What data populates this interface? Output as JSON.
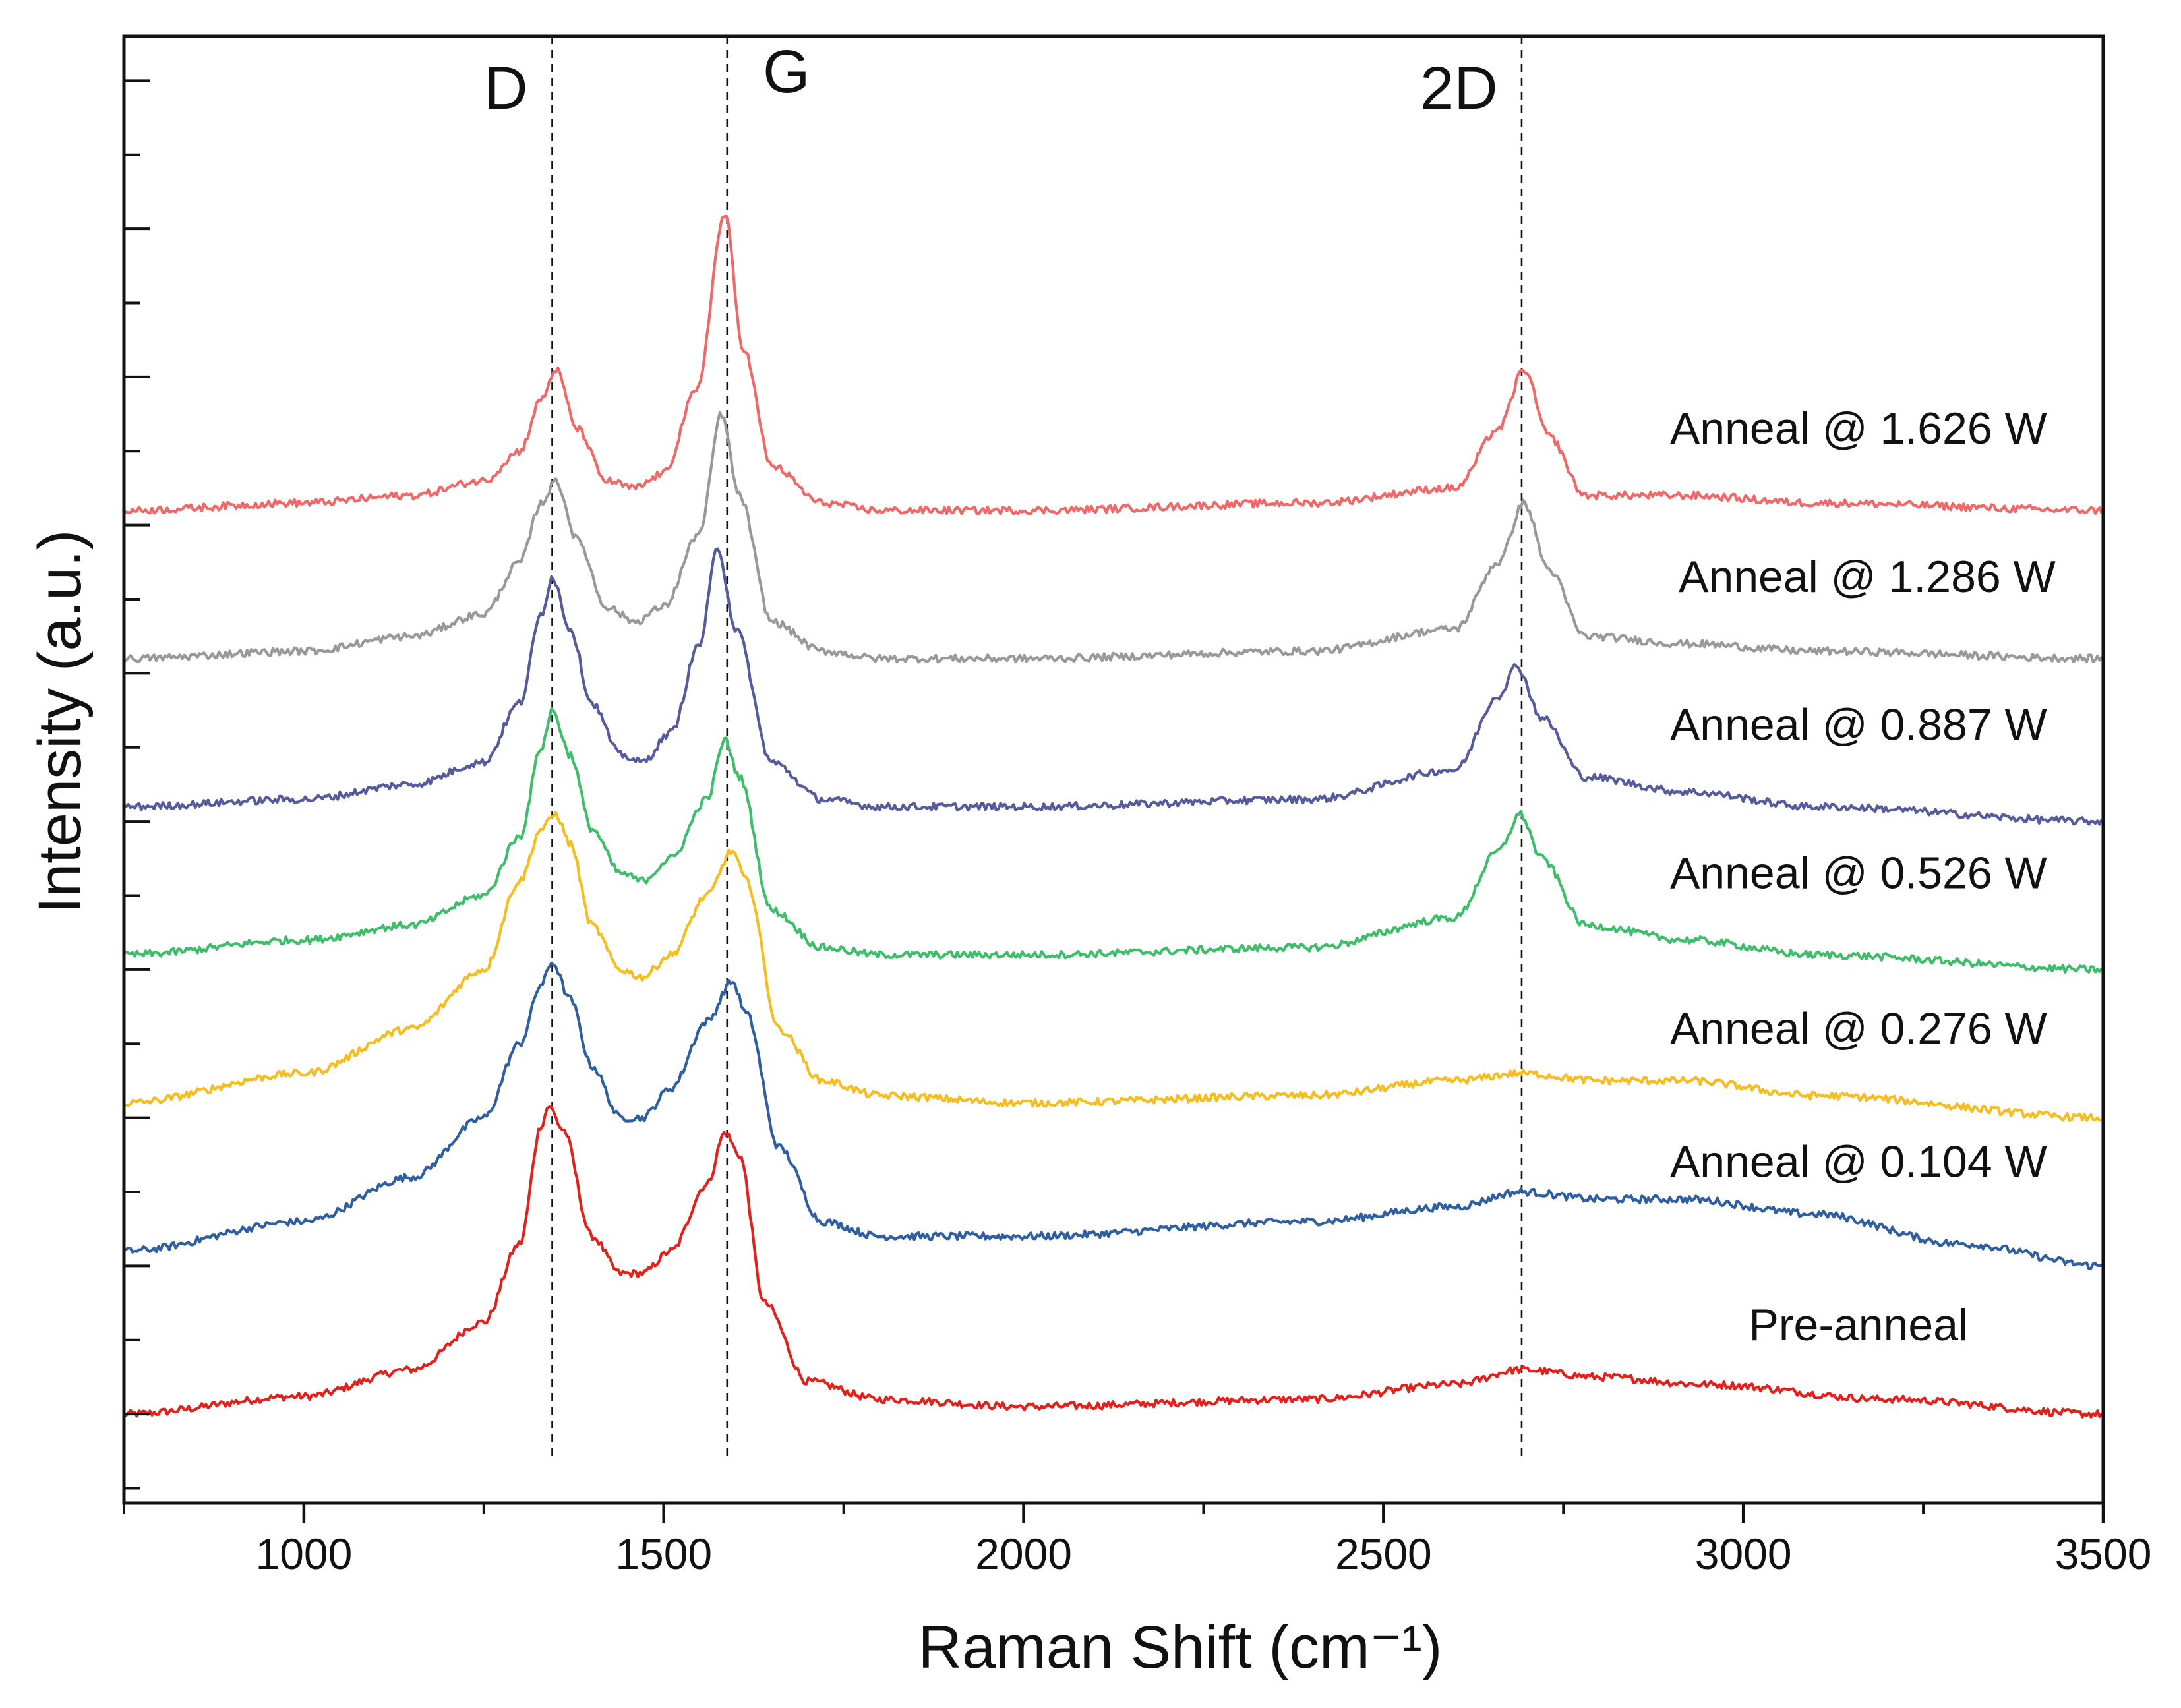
{
  "chart_data": {
    "type": "line",
    "title": "",
    "xlabel": "Raman Shift (cm⁻¹)",
    "ylabel": "Intensity (a.u.)",
    "xlim": [
      750,
      3500
    ],
    "ylim": [
      -0.6,
      9.3
    ],
    "x_ticks": [
      1000,
      1500,
      2000,
      2500,
      3000,
      3500
    ],
    "grid": false,
    "legend": "inline labels to the right of each curve",
    "peak_markers": [
      {
        "label": "D",
        "x": 1345
      },
      {
        "label": "G",
        "x": 1588
      },
      {
        "label": "2D",
        "x": 2692
      }
    ],
    "series": [
      {
        "name": "Pre-anneal",
        "color": "#e2211c",
        "baseline": 0.0,
        "points": [
          [
            750,
            0.0
          ],
          [
            1000,
            0.12
          ],
          [
            1150,
            0.3
          ],
          [
            1250,
            0.62
          ],
          [
            1300,
            1.15
          ],
          [
            1330,
            1.95
          ],
          [
            1340,
            2.08
          ],
          [
            1360,
            1.92
          ],
          [
            1400,
            1.2
          ],
          [
            1440,
            0.95
          ],
          [
            1470,
            0.95
          ],
          [
            1510,
            1.1
          ],
          [
            1560,
            1.55
          ],
          [
            1585,
            1.9
          ],
          [
            1605,
            1.75
          ],
          [
            1640,
            0.75
          ],
          [
            1700,
            0.22
          ],
          [
            1800,
            0.1
          ],
          [
            2000,
            0.05
          ],
          [
            2400,
            0.1
          ],
          [
            2600,
            0.2
          ],
          [
            2690,
            0.3
          ],
          [
            2800,
            0.25
          ],
          [
            2950,
            0.2
          ],
          [
            3200,
            0.1
          ],
          [
            3500,
            0.0
          ]
        ]
      },
      {
        "name": "Anneal @ 0.104 W",
        "color": "#2f5fa0",
        "baseline": 1.1,
        "points": [
          [
            750,
            1.1
          ],
          [
            1000,
            1.3
          ],
          [
            1150,
            1.6
          ],
          [
            1250,
            2.0
          ],
          [
            1300,
            2.5
          ],
          [
            1330,
            2.9
          ],
          [
            1345,
            3.05
          ],
          [
            1370,
            2.8
          ],
          [
            1400,
            2.35
          ],
          [
            1440,
            2.0
          ],
          [
            1470,
            2.0
          ],
          [
            1510,
            2.2
          ],
          [
            1560,
            2.65
          ],
          [
            1595,
            2.92
          ],
          [
            1615,
            2.7
          ],
          [
            1660,
            1.8
          ],
          [
            1720,
            1.3
          ],
          [
            1800,
            1.2
          ],
          [
            2000,
            1.2
          ],
          [
            2400,
            1.3
          ],
          [
            2600,
            1.4
          ],
          [
            2690,
            1.5
          ],
          [
            2800,
            1.45
          ],
          [
            2920,
            1.45
          ],
          [
            3100,
            1.35
          ],
          [
            3300,
            1.15
          ],
          [
            3500,
            1.0
          ]
        ]
      },
      {
        "name": "Anneal @ 0.276 W",
        "color": "#f5bd1f",
        "baseline": 2.1,
        "points": [
          [
            750,
            2.1
          ],
          [
            1000,
            2.3
          ],
          [
            1150,
            2.6
          ],
          [
            1250,
            3.0
          ],
          [
            1300,
            3.6
          ],
          [
            1330,
            3.95
          ],
          [
            1350,
            4.05
          ],
          [
            1370,
            3.85
          ],
          [
            1400,
            3.3
          ],
          [
            1440,
            3.0
          ],
          [
            1470,
            2.95
          ],
          [
            1510,
            3.1
          ],
          [
            1560,
            3.5
          ],
          [
            1595,
            3.8
          ],
          [
            1615,
            3.6
          ],
          [
            1660,
            2.6
          ],
          [
            1720,
            2.25
          ],
          [
            1800,
            2.15
          ],
          [
            2000,
            2.1
          ],
          [
            2400,
            2.15
          ],
          [
            2600,
            2.25
          ],
          [
            2690,
            2.3
          ],
          [
            2800,
            2.25
          ],
          [
            2920,
            2.25
          ],
          [
            3100,
            2.15
          ],
          [
            3500,
            2.0
          ]
        ]
      },
      {
        "name": "Anneal @ 0.526 W",
        "color": "#3ebd6a",
        "baseline": 3.1,
        "points": [
          [
            750,
            3.1
          ],
          [
            1000,
            3.2
          ],
          [
            1150,
            3.3
          ],
          [
            1250,
            3.5
          ],
          [
            1300,
            3.9
          ],
          [
            1330,
            4.5
          ],
          [
            1345,
            4.75
          ],
          [
            1370,
            4.45
          ],
          [
            1400,
            3.95
          ],
          [
            1440,
            3.65
          ],
          [
            1470,
            3.6
          ],
          [
            1510,
            3.75
          ],
          [
            1560,
            4.15
          ],
          [
            1585,
            4.55
          ],
          [
            1605,
            4.3
          ],
          [
            1650,
            3.4
          ],
          [
            1720,
            3.15
          ],
          [
            1800,
            3.1
          ],
          [
            2000,
            3.1
          ],
          [
            2400,
            3.15
          ],
          [
            2600,
            3.35
          ],
          [
            2660,
            3.8
          ],
          [
            2690,
            4.05
          ],
          [
            2720,
            3.75
          ],
          [
            2780,
            3.3
          ],
          [
            2920,
            3.2
          ],
          [
            3100,
            3.1
          ],
          [
            3500,
            3.0
          ]
        ]
      },
      {
        "name": "Anneal @ 0.887 W",
        "color": "#565b9c",
        "baseline": 4.1,
        "points": [
          [
            750,
            4.1
          ],
          [
            1000,
            4.15
          ],
          [
            1150,
            4.25
          ],
          [
            1250,
            4.4
          ],
          [
            1300,
            4.8
          ],
          [
            1330,
            5.4
          ],
          [
            1345,
            5.65
          ],
          [
            1370,
            5.3
          ],
          [
            1400,
            4.8
          ],
          [
            1440,
            4.45
          ],
          [
            1470,
            4.4
          ],
          [
            1510,
            4.6
          ],
          [
            1550,
            5.2
          ],
          [
            1575,
            5.85
          ],
          [
            1600,
            5.3
          ],
          [
            1650,
            4.4
          ],
          [
            1720,
            4.15
          ],
          [
            1800,
            4.1
          ],
          [
            2000,
            4.1
          ],
          [
            2400,
            4.15
          ],
          [
            2600,
            4.35
          ],
          [
            2660,
            4.85
          ],
          [
            2685,
            5.05
          ],
          [
            2720,
            4.7
          ],
          [
            2780,
            4.3
          ],
          [
            2920,
            4.2
          ],
          [
            3100,
            4.1
          ],
          [
            3500,
            4.0
          ]
        ]
      },
      {
        "name": "Anneal @ 1.286 W",
        "color": "#999999",
        "baseline": 5.1,
        "points": [
          [
            750,
            5.1
          ],
          [
            1000,
            5.15
          ],
          [
            1150,
            5.25
          ],
          [
            1250,
            5.4
          ],
          [
            1300,
            5.75
          ],
          [
            1330,
            6.15
          ],
          [
            1350,
            6.3
          ],
          [
            1380,
            5.9
          ],
          [
            1420,
            5.45
          ],
          [
            1460,
            5.35
          ],
          [
            1500,
            5.45
          ],
          [
            1550,
            5.95
          ],
          [
            1580,
            6.75
          ],
          [
            1605,
            6.2
          ],
          [
            1650,
            5.35
          ],
          [
            1720,
            5.15
          ],
          [
            1800,
            5.1
          ],
          [
            2000,
            5.1
          ],
          [
            2400,
            5.15
          ],
          [
            2600,
            5.3
          ],
          [
            2660,
            5.75
          ],
          [
            2695,
            6.15
          ],
          [
            2730,
            5.7
          ],
          [
            2780,
            5.25
          ],
          [
            2920,
            5.2
          ],
          [
            3100,
            5.15
          ],
          [
            3500,
            5.1
          ]
        ]
      },
      {
        "name": "Anneal @ 1.626 W",
        "color": "#f06868",
        "baseline": 6.1,
        "points": [
          [
            750,
            6.1
          ],
          [
            1000,
            6.15
          ],
          [
            1150,
            6.2
          ],
          [
            1250,
            6.3
          ],
          [
            1300,
            6.5
          ],
          [
            1330,
            6.85
          ],
          [
            1350,
            7.05
          ],
          [
            1380,
            6.65
          ],
          [
            1420,
            6.3
          ],
          [
            1460,
            6.25
          ],
          [
            1500,
            6.35
          ],
          [
            1545,
            6.9
          ],
          [
            1585,
            8.1
          ],
          [
            1610,
            7.2
          ],
          [
            1650,
            6.4
          ],
          [
            1720,
            6.15
          ],
          [
            1800,
            6.1
          ],
          [
            2000,
            6.1
          ],
          [
            2400,
            6.15
          ],
          [
            2600,
            6.25
          ],
          [
            2660,
            6.65
          ],
          [
            2695,
            7.05
          ],
          [
            2730,
            6.6
          ],
          [
            2780,
            6.2
          ],
          [
            2920,
            6.2
          ],
          [
            3100,
            6.15
          ],
          [
            3500,
            6.1
          ]
        ]
      }
    ],
    "series_labels": [
      {
        "text": "Pre-anneal",
        "x": 3160,
        "y": 0.5
      },
      {
        "text": "Anneal @ 0.104 W",
        "x": 3160,
        "y": 1.6
      },
      {
        "text": "Anneal @ 0.276 W",
        "x": 3160,
        "y": 2.5
      },
      {
        "text": "Anneal @ 0.526 W",
        "x": 3160,
        "y": 3.55
      },
      {
        "text": "Anneal @ 0.887 W",
        "x": 3160,
        "y": 4.55
      },
      {
        "text": "Anneal @ 1.286 W",
        "x": 3172,
        "y": 5.55
      },
      {
        "text": "Anneal @ 1.626 W",
        "x": 3160,
        "y": 6.55
      }
    ]
  }
}
